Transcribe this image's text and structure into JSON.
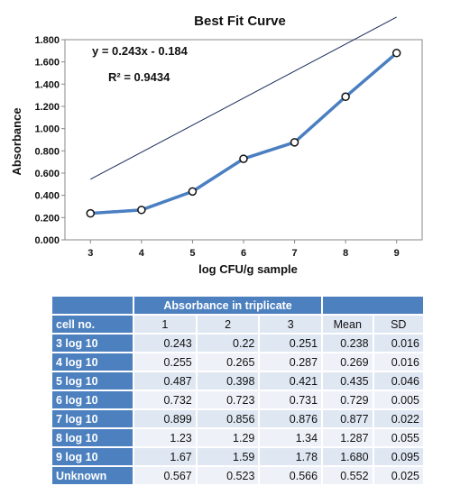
{
  "chart_data": {
    "type": "line",
    "title": "Best Fit Curve",
    "xlabel": "log CFU/g  sample",
    "ylabel": "Absorbance",
    "x": [
      3,
      4,
      5,
      6,
      7,
      8,
      9
    ],
    "series": [
      {
        "values": [
          0.238,
          0.269,
          0.435,
          0.729,
          0.877,
          1.287,
          1.68
        ]
      }
    ],
    "trendline": {
      "slope": 0.243,
      "intercept": -0.184
    },
    "equation": "y = 0.243x - 0.184",
    "r_squared": "R² = 0.9434",
    "x_ticks": [
      "3",
      "4",
      "5",
      "6",
      "7",
      "8",
      "9"
    ],
    "y_ticks": [
      "0.000",
      "0.200",
      "0.400",
      "0.600",
      "0.800",
      "1.000",
      "1.200",
      "1.400",
      "1.600",
      "1.800"
    ],
    "xlim": [
      2.5,
      9.5
    ],
    "ylim": [
      0,
      1.8
    ],
    "colors": {
      "series": "#4a7fc1",
      "trend": "#1a2a5a"
    }
  },
  "table": {
    "group_header": "Absorbance in triplicate",
    "columns": [
      "cell no.",
      "1",
      "2",
      "3",
      "Mean",
      "SD"
    ],
    "rows": [
      [
        "3 log 10",
        "0.243",
        "0.22",
        "0.251",
        "0.238",
        "0.016"
      ],
      [
        "4 log 10",
        "0.255",
        "0.265",
        "0.287",
        "0.269",
        "0.016"
      ],
      [
        "5 log 10",
        "0.487",
        "0.398",
        "0.421",
        "0.435",
        "0.046"
      ],
      [
        "6 log 10",
        "0.732",
        "0.723",
        "0.731",
        "0.729",
        "0.005"
      ],
      [
        "7 log 10",
        "0.899",
        "0.856",
        "0.876",
        "0.877",
        "0.022"
      ],
      [
        "8 log 10",
        "1.23",
        "1.29",
        "1.34",
        "1.287",
        "0.055"
      ],
      [
        "9 log 10",
        "1.67",
        "1.59",
        "1.78",
        "1.680",
        "0.095"
      ],
      [
        "Unknown",
        "0.567",
        "0.523",
        "0.566",
        "0.552",
        "0.025"
      ]
    ]
  }
}
